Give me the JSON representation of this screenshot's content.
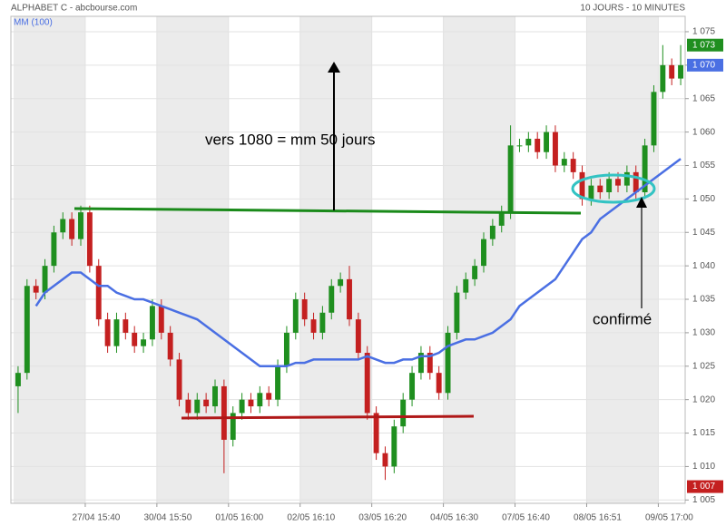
{
  "chart_data": {
    "type": "candlestick",
    "title": "ALPHABET C - abcbourse.com",
    "subtitle": "10 JOURS - 10 MINUTES",
    "xlim": [
      0,
      75
    ],
    "xticks": [
      {
        "value": 8,
        "label": "27/04 15:40"
      },
      {
        "value": 16,
        "label": "30/04 15:50"
      },
      {
        "value": 24,
        "label": "01/05 16:00"
      },
      {
        "value": 32,
        "label": "02/05 16:10"
      },
      {
        "value": 40,
        "label": "03/05 16:20"
      },
      {
        "value": 48,
        "label": "04/05 16:30"
      },
      {
        "value": 56,
        "label": "07/05 16:40"
      },
      {
        "value": 64,
        "label": "08/05 16:51"
      },
      {
        "value": 72,
        "label": "09/05 17:00"
      }
    ],
    "ylim": [
      1004.5,
      1077.3
    ],
    "yticks": [
      {
        "value": 1005,
        "label": "1 005"
      },
      {
        "value": 1010,
        "label": "1 010"
      },
      {
        "value": 1015,
        "label": "1 015"
      },
      {
        "value": 1020,
        "label": "1 020"
      },
      {
        "value": 1025,
        "label": "1 025"
      },
      {
        "value": 1030,
        "label": "1 030"
      },
      {
        "value": 1035,
        "label": "1 035"
      },
      {
        "value": 1040,
        "label": "1 040"
      },
      {
        "value": 1045,
        "label": "1 045"
      },
      {
        "value": 1050,
        "label": "1 050"
      },
      {
        "value": 1055,
        "label": "1 055"
      },
      {
        "value": 1060,
        "label": "1 060"
      },
      {
        "value": 1065,
        "label": "1 065"
      },
      {
        "value": 1070,
        "label": "1 070"
      },
      {
        "value": 1075,
        "label": "1 075"
      }
    ],
    "grid": true,
    "up_color": "#1f8f1f",
    "down_color": "#c42020",
    "open": [
      1022,
      1024,
      1037,
      1036,
      1040,
      1045,
      1047,
      1044,
      1048,
      1040,
      1032,
      1028,
      1032,
      1030,
      1028,
      1029,
      1034,
      1030,
      1026,
      1020,
      1018,
      1020,
      1019,
      1022,
      1014,
      1018,
      1020,
      1019,
      1021,
      1020,
      1025,
      1030,
      1035,
      1032,
      1030,
      1033,
      1037,
      1038,
      1032,
      1027,
      1018,
      1012,
      1010,
      1016,
      1020,
      1024,
      1027,
      1024,
      1021,
      1030,
      1036,
      1038,
      1040,
      1044,
      1046,
      1048,
      1058,
      1058,
      1059,
      1057,
      1060,
      1055,
      1056,
      1054,
      1050,
      1052,
      1051,
      1053,
      1052,
      1054,
      1051,
      1058,
      1066,
      1070,
      1068
    ],
    "high": [
      1025,
      1038,
      1038,
      1041,
      1046,
      1048,
      1048,
      1049,
      1049,
      1041,
      1033,
      1033,
      1033,
      1031,
      1030,
      1035,
      1035,
      1031,
      1027,
      1021,
      1021,
      1021,
      1023,
      1023,
      1019,
      1021,
      1021,
      1022,
      1022,
      1026,
      1031,
      1036,
      1036,
      1033,
      1034,
      1038,
      1039,
      1040,
      1033,
      1028,
      1019,
      1013,
      1017,
      1021,
      1025,
      1028,
      1028,
      1025,
      1031,
      1037,
      1039,
      1041,
      1045,
      1047,
      1049,
      1061,
      1059,
      1060,
      1060,
      1061,
      1061,
      1057,
      1057,
      1055,
      1053,
      1053,
      1054,
      1054,
      1055,
      1055,
      1059,
      1067,
      1073,
      1071,
      1073
    ],
    "low": [
      1018,
      1023,
      1035,
      1035,
      1039,
      1044,
      1043,
      1043,
      1039,
      1031,
      1027,
      1027,
      1029,
      1027,
      1027,
      1028,
      1029,
      1025,
      1019,
      1017,
      1017,
      1018,
      1018,
      1009,
      1013,
      1017,
      1018,
      1018,
      1019,
      1019,
      1024,
      1029,
      1031,
      1029,
      1029,
      1032,
      1036,
      1031,
      1026,
      1017,
      1011,
      1008,
      1009,
      1015,
      1019,
      1023,
      1023,
      1020,
      1020,
      1029,
      1035,
      1037,
      1039,
      1043,
      1045,
      1047,
      1057,
      1057,
      1056,
      1056,
      1054,
      1054,
      1053,
      1049,
      1049,
      1050,
      1050,
      1051,
      1051,
      1050,
      1050,
      1057,
      1065,
      1067,
      1067
    ],
    "close": [
      1024,
      1037,
      1036,
      1040,
      1045,
      1047,
      1044,
      1048,
      1040,
      1032,
      1028,
      1032,
      1030,
      1028,
      1029,
      1034,
      1030,
      1026,
      1020,
      1018,
      1020,
      1019,
      1022,
      1014,
      1018,
      1020,
      1019,
      1021,
      1020,
      1025,
      1030,
      1035,
      1032,
      1030,
      1033,
      1037,
      1038,
      1032,
      1027,
      1018,
      1012,
      1010,
      1016,
      1020,
      1024,
      1027,
      1024,
      1021,
      1030,
      1036,
      1038,
      1040,
      1044,
      1046,
      1048,
      1058,
      1058,
      1059,
      1057,
      1060,
      1055,
      1056,
      1054,
      1050,
      1052,
      1051,
      1053,
      1052,
      1054,
      1051,
      1058,
      1066,
      1070,
      1068,
      1070
    ],
    "series": [
      {
        "name": "MM (100)",
        "color": "#4a6fe3",
        "values": [
          null,
          null,
          1034,
          1036,
          1037,
          1038,
          1039,
          1039,
          1038,
          1037,
          1037,
          1036,
          1035.5,
          1035,
          1035,
          1034.5,
          1034,
          1033.5,
          1033,
          1032.5,
          1032,
          1031,
          1030,
          1029,
          1028,
          1027,
          1026,
          1025,
          1025,
          1025,
          1025,
          1025.5,
          1025.5,
          1026,
          1026,
          1026,
          1026,
          1026,
          1026,
          1026.5,
          1026,
          1025.5,
          1025.5,
          1026,
          1026,
          1026.5,
          1026.5,
          1027,
          1028,
          1028.5,
          1029,
          1029,
          1029.5,
          1030,
          1031,
          1032,
          1034,
          1035,
          1036,
          1037,
          1038,
          1040,
          1042,
          1044,
          1045,
          1047,
          1048,
          1049,
          1050,
          1051,
          1052,
          1053,
          1054,
          1055,
          1056
        ]
      }
    ],
    "price_labels": [
      {
        "value": 1073,
        "label": "1 073",
        "color": "#1f8f1f"
      },
      {
        "value": 1070,
        "label": "1 070",
        "color": "#4a6fe3"
      },
      {
        "value": 1007,
        "label": "1 007",
        "color": "#c42020"
      }
    ],
    "annotations": [
      "vers 1080 = mm 50 jours",
      "confirmé"
    ]
  }
}
